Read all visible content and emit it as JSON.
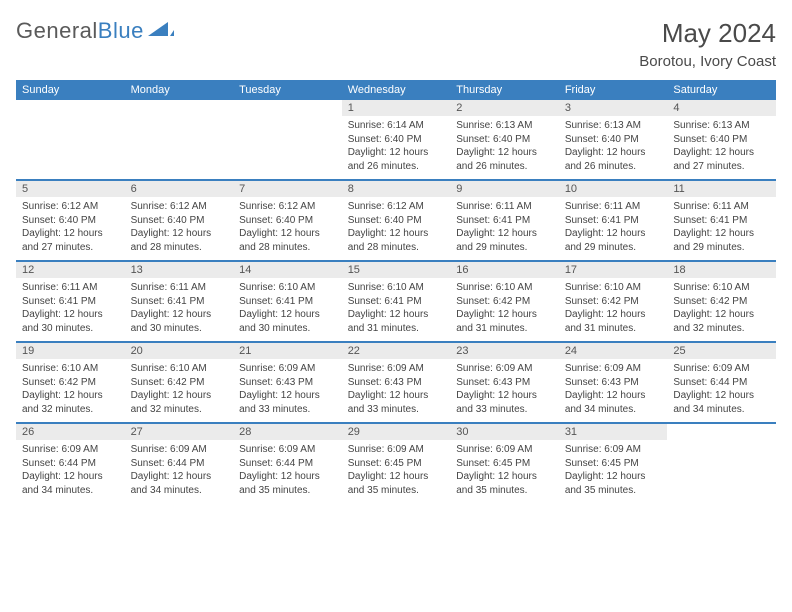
{
  "brand": {
    "part1": "General",
    "part2": "Blue"
  },
  "title": {
    "month": "May 2024",
    "location": "Borotou, Ivory Coast"
  },
  "colors": {
    "primary": "#3a7fbf",
    "daynum_bg": "#ebebeb",
    "text": "#444444"
  },
  "day_headers": [
    "Sunday",
    "Monday",
    "Tuesday",
    "Wednesday",
    "Thursday",
    "Friday",
    "Saturday"
  ],
  "weeks": [
    [
      null,
      null,
      null,
      {
        "n": "1",
        "sr": "6:14 AM",
        "ss": "6:40 PM",
        "dl": "12 hours and 26 minutes."
      },
      {
        "n": "2",
        "sr": "6:13 AM",
        "ss": "6:40 PM",
        "dl": "12 hours and 26 minutes."
      },
      {
        "n": "3",
        "sr": "6:13 AM",
        "ss": "6:40 PM",
        "dl": "12 hours and 26 minutes."
      },
      {
        "n": "4",
        "sr": "6:13 AM",
        "ss": "6:40 PM",
        "dl": "12 hours and 27 minutes."
      }
    ],
    [
      {
        "n": "5",
        "sr": "6:12 AM",
        "ss": "6:40 PM",
        "dl": "12 hours and 27 minutes."
      },
      {
        "n": "6",
        "sr": "6:12 AM",
        "ss": "6:40 PM",
        "dl": "12 hours and 28 minutes."
      },
      {
        "n": "7",
        "sr": "6:12 AM",
        "ss": "6:40 PM",
        "dl": "12 hours and 28 minutes."
      },
      {
        "n": "8",
        "sr": "6:12 AM",
        "ss": "6:40 PM",
        "dl": "12 hours and 28 minutes."
      },
      {
        "n": "9",
        "sr": "6:11 AM",
        "ss": "6:41 PM",
        "dl": "12 hours and 29 minutes."
      },
      {
        "n": "10",
        "sr": "6:11 AM",
        "ss": "6:41 PM",
        "dl": "12 hours and 29 minutes."
      },
      {
        "n": "11",
        "sr": "6:11 AM",
        "ss": "6:41 PM",
        "dl": "12 hours and 29 minutes."
      }
    ],
    [
      {
        "n": "12",
        "sr": "6:11 AM",
        "ss": "6:41 PM",
        "dl": "12 hours and 30 minutes."
      },
      {
        "n": "13",
        "sr": "6:11 AM",
        "ss": "6:41 PM",
        "dl": "12 hours and 30 minutes."
      },
      {
        "n": "14",
        "sr": "6:10 AM",
        "ss": "6:41 PM",
        "dl": "12 hours and 30 minutes."
      },
      {
        "n": "15",
        "sr": "6:10 AM",
        "ss": "6:41 PM",
        "dl": "12 hours and 31 minutes."
      },
      {
        "n": "16",
        "sr": "6:10 AM",
        "ss": "6:42 PM",
        "dl": "12 hours and 31 minutes."
      },
      {
        "n": "17",
        "sr": "6:10 AM",
        "ss": "6:42 PM",
        "dl": "12 hours and 31 minutes."
      },
      {
        "n": "18",
        "sr": "6:10 AM",
        "ss": "6:42 PM",
        "dl": "12 hours and 32 minutes."
      }
    ],
    [
      {
        "n": "19",
        "sr": "6:10 AM",
        "ss": "6:42 PM",
        "dl": "12 hours and 32 minutes."
      },
      {
        "n": "20",
        "sr": "6:10 AM",
        "ss": "6:42 PM",
        "dl": "12 hours and 32 minutes."
      },
      {
        "n": "21",
        "sr": "6:09 AM",
        "ss": "6:43 PM",
        "dl": "12 hours and 33 minutes."
      },
      {
        "n": "22",
        "sr": "6:09 AM",
        "ss": "6:43 PM",
        "dl": "12 hours and 33 minutes."
      },
      {
        "n": "23",
        "sr": "6:09 AM",
        "ss": "6:43 PM",
        "dl": "12 hours and 33 minutes."
      },
      {
        "n": "24",
        "sr": "6:09 AM",
        "ss": "6:43 PM",
        "dl": "12 hours and 34 minutes."
      },
      {
        "n": "25",
        "sr": "6:09 AM",
        "ss": "6:44 PM",
        "dl": "12 hours and 34 minutes."
      }
    ],
    [
      {
        "n": "26",
        "sr": "6:09 AM",
        "ss": "6:44 PM",
        "dl": "12 hours and 34 minutes."
      },
      {
        "n": "27",
        "sr": "6:09 AM",
        "ss": "6:44 PM",
        "dl": "12 hours and 34 minutes."
      },
      {
        "n": "28",
        "sr": "6:09 AM",
        "ss": "6:44 PM",
        "dl": "12 hours and 35 minutes."
      },
      {
        "n": "29",
        "sr": "6:09 AM",
        "ss": "6:45 PM",
        "dl": "12 hours and 35 minutes."
      },
      {
        "n": "30",
        "sr": "6:09 AM",
        "ss": "6:45 PM",
        "dl": "12 hours and 35 minutes."
      },
      {
        "n": "31",
        "sr": "6:09 AM",
        "ss": "6:45 PM",
        "dl": "12 hours and 35 minutes."
      },
      null
    ]
  ],
  "labels": {
    "sunrise": "Sunrise:",
    "sunset": "Sunset:",
    "daylight": "Daylight:"
  }
}
